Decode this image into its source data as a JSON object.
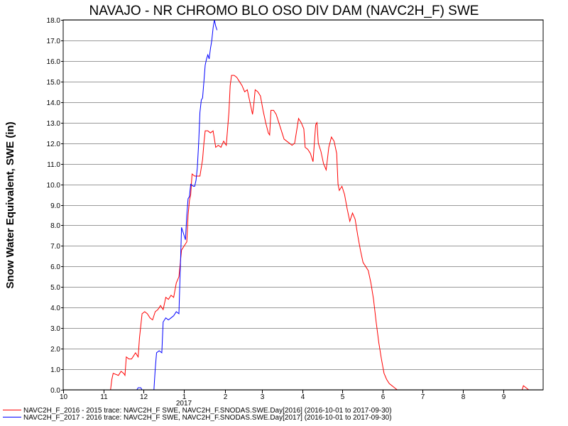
{
  "chart_data": {
    "type": "line",
    "title": "NAVAJO - NR CHROMO BLO OSO DIV DAM (NAVC2H_F) SWE",
    "ylabel": "Snow Water Equivalent, SWE (in)",
    "xlabel": "",
    "ylim": [
      0,
      18
    ],
    "y_ticks": [
      "0.0",
      "1.0",
      "2.0",
      "3.0",
      "4.0",
      "5.0",
      "6.0",
      "7.0",
      "8.0",
      "9.0",
      "10.0",
      "11.0",
      "12.0",
      "13.0",
      "14.0",
      "15.0",
      "16.0",
      "17.0",
      "18.0"
    ],
    "x_ticks": [
      "10",
      "11",
      "12",
      "1",
      "2",
      "3",
      "4",
      "5",
      "6",
      "7",
      "8",
      "9"
    ],
    "year_label": "2017",
    "grid": true,
    "legend_position": "bottom",
    "colors": {
      "series1": "#ff0000",
      "series2": "#0000ff"
    },
    "series": [
      {
        "name": "NAVC2H_F_2016 - 2015 trace: NAVC2H_F SWE, NAVC2H_F.SNODAS.SWE.Day[2016] (2016-10-01 to 2017-09-30)",
        "color": "#ff0000",
        "points": [
          [
            0,
            0
          ],
          [
            36,
            0
          ],
          [
            37,
            0.5
          ],
          [
            38,
            0.8
          ],
          [
            42,
            0.7
          ],
          [
            44,
            0.9
          ],
          [
            46,
            0.8
          ],
          [
            47,
            0.7
          ],
          [
            48,
            1.6
          ],
          [
            50,
            1.5
          ],
          [
            52,
            1.5
          ],
          [
            53,
            1.6
          ],
          [
            55,
            1.8
          ],
          [
            56,
            1.7
          ],
          [
            57,
            1.6
          ],
          [
            58,
            2.5
          ],
          [
            60,
            3.7
          ],
          [
            62,
            3.8
          ],
          [
            64,
            3.7
          ],
          [
            66,
            3.5
          ],
          [
            68,
            3.4
          ],
          [
            70,
            3.8
          ],
          [
            72,
            3.9
          ],
          [
            74,
            4.1
          ],
          [
            76,
            3.9
          ],
          [
            78,
            4.5
          ],
          [
            80,
            4.4
          ],
          [
            82,
            4.6
          ],
          [
            84,
            4.5
          ],
          [
            86,
            5.2
          ],
          [
            88,
            5.5
          ],
          [
            90,
            6.8
          ],
          [
            92,
            7.0
          ],
          [
            94,
            7.2
          ],
          [
            95,
            8.5
          ],
          [
            96,
            9.2
          ],
          [
            97,
            9.5
          ],
          [
            98,
            10.5
          ],
          [
            100,
            10.4
          ],
          [
            102,
            10.4
          ],
          [
            104,
            10.4
          ],
          [
            106,
            11.2
          ],
          [
            107,
            12.0
          ],
          [
            108,
            12.6
          ],
          [
            110,
            12.6
          ],
          [
            112,
            12.5
          ],
          [
            114,
            12.6
          ],
          [
            115,
            12.2
          ],
          [
            116,
            11.8
          ],
          [
            118,
            11.9
          ],
          [
            120,
            11.8
          ],
          [
            122,
            12.1
          ],
          [
            124,
            11.9
          ],
          [
            126,
            13.5
          ],
          [
            127,
            14.8
          ],
          [
            128,
            15.3
          ],
          [
            130,
            15.3
          ],
          [
            132,
            15.2
          ],
          [
            134,
            15.0
          ],
          [
            136,
            14.8
          ],
          [
            138,
            14.5
          ],
          [
            140,
            14.6
          ],
          [
            142,
            14.0
          ],
          [
            144,
            13.4
          ],
          [
            145,
            13.9
          ],
          [
            146,
            14.6
          ],
          [
            148,
            14.5
          ],
          [
            150,
            14.3
          ],
          [
            152,
            13.6
          ],
          [
            154,
            13.0
          ],
          [
            156,
            12.5
          ],
          [
            157,
            12.4
          ],
          [
            158,
            13.6
          ],
          [
            160,
            13.6
          ],
          [
            162,
            13.4
          ],
          [
            164,
            13.0
          ],
          [
            166,
            12.6
          ],
          [
            168,
            12.2
          ],
          [
            170,
            12.1
          ],
          [
            172,
            12.0
          ],
          [
            174,
            11.9
          ],
          [
            176,
            12.0
          ],
          [
            178,
            12.8
          ],
          [
            179,
            13.2
          ],
          [
            181,
            13.0
          ],
          [
            183,
            12.7
          ],
          [
            184,
            11.8
          ],
          [
            186,
            11.7
          ],
          [
            188,
            11.5
          ],
          [
            190,
            11.1
          ],
          [
            192,
            12.9
          ],
          [
            193,
            13.0
          ],
          [
            194,
            12.0
          ],
          [
            196,
            11.6
          ],
          [
            198,
            11.0
          ],
          [
            200,
            10.7
          ],
          [
            202,
            11.8
          ],
          [
            204,
            12.3
          ],
          [
            206,
            12.1
          ],
          [
            208,
            11.5
          ],
          [
            209,
            10.0
          ],
          [
            210,
            9.7
          ],
          [
            212,
            9.9
          ],
          [
            214,
            9.5
          ],
          [
            216,
            8.8
          ],
          [
            218,
            8.2
          ],
          [
            220,
            8.6
          ],
          [
            222,
            8.3
          ],
          [
            224,
            7.5
          ],
          [
            226,
            6.8
          ],
          [
            228,
            6.2
          ],
          [
            230,
            6.0
          ],
          [
            232,
            5.8
          ],
          [
            234,
            5.2
          ],
          [
            236,
            4.4
          ],
          [
            238,
            3.3
          ],
          [
            240,
            2.3
          ],
          [
            242,
            1.5
          ],
          [
            244,
            0.8
          ],
          [
            246,
            0.5
          ],
          [
            248,
            0.3
          ],
          [
            250,
            0.2
          ],
          [
            252,
            0.1
          ],
          [
            254,
            0.0
          ],
          [
            349,
            0.0
          ],
          [
            350,
            0.2
          ],
          [
            352,
            0.1
          ],
          [
            354,
            0.0
          ]
        ]
      },
      {
        "name": "NAVC2H_F_2017 - 2016 trace: NAVC2H_F SWE, NAVC2H_F.SNODAS.SWE.Day[2017] (2016-10-01 to 2017-09-30)",
        "color": "#0000ff",
        "points": [
          [
            0,
            0
          ],
          [
            56,
            0
          ],
          [
            57,
            0.1
          ],
          [
            59,
            0.1
          ],
          [
            60,
            0
          ],
          [
            69,
            0
          ],
          [
            70,
            1.0
          ],
          [
            71,
            1.8
          ],
          [
            73,
            1.9
          ],
          [
            75,
            1.8
          ],
          [
            76,
            3.3
          ],
          [
            78,
            3.5
          ],
          [
            80,
            3.4
          ],
          [
            82,
            3.5
          ],
          [
            84,
            3.6
          ],
          [
            86,
            3.8
          ],
          [
            88,
            3.7
          ],
          [
            90,
            7.9
          ],
          [
            92,
            7.5
          ],
          [
            93,
            7.3
          ],
          [
            94,
            8.5
          ],
          [
            95,
            9.3
          ],
          [
            96,
            9.4
          ],
          [
            97,
            10.0
          ],
          [
            99,
            9.9
          ],
          [
            100,
            9.9
          ],
          [
            101,
            10.2
          ],
          [
            102,
            10.8
          ],
          [
            103,
            12.0
          ],
          [
            104,
            13.5
          ],
          [
            105,
            14.1
          ],
          [
            106,
            14.2
          ],
          [
            107,
            15.0
          ],
          [
            108,
            15.8
          ],
          [
            109,
            16.1
          ],
          [
            110,
            16.3
          ],
          [
            111,
            16.1
          ],
          [
            112,
            16.6
          ],
          [
            113,
            17.0
          ],
          [
            114,
            17.6
          ],
          [
            115,
            18.0
          ],
          [
            116,
            17.7
          ],
          [
            117,
            17.5
          ]
        ]
      }
    ]
  }
}
